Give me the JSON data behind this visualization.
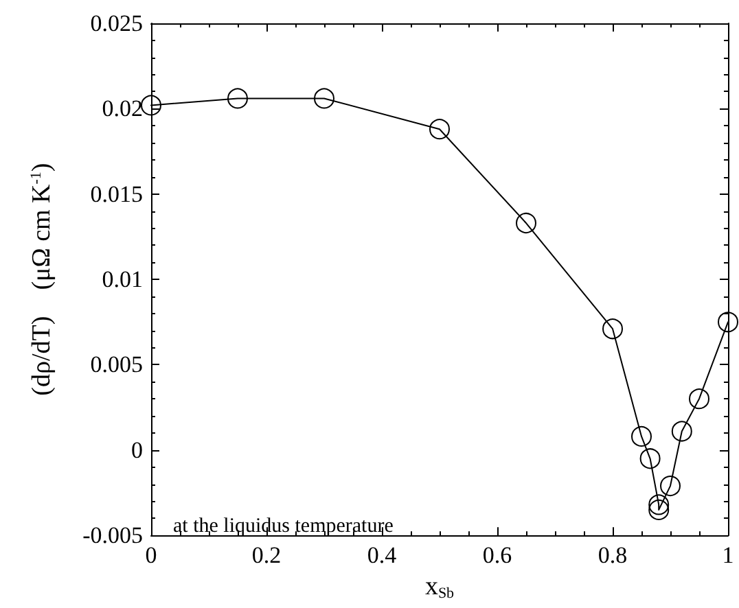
{
  "chart_data": {
    "type": "line",
    "xlabel": "x$_{Sb}$",
    "ylabel": "(dρ/dT)    (μΩ cm K$^{-1}$)",
    "annotations": [
      "at the liquidus temperature"
    ],
    "series": [
      {
        "color": "#000000",
        "x": [
          0,
          0.15,
          0.3,
          0.5,
          0.65,
          0.8,
          0.85,
          0.865,
          0.88,
          0.88,
          0.9,
          0.92,
          0.95,
          1.0
        ],
        "values": [
          0.0202,
          0.0206,
          0.0206,
          0.0188,
          0.0133,
          0.0071,
          0.0008,
          -0.0005,
          -0.0032,
          -0.0035,
          -0.0021,
          0.0011,
          0.003,
          0.0075
        ]
      }
    ],
    "xlim": [
      0,
      1
    ],
    "xticks": [
      0,
      0.2,
      0.4,
      0.6,
      0.8,
      1
    ],
    "ylim": [
      -0.005,
      0.025
    ],
    "yticks": [
      -0.005,
      0,
      0.005,
      0.01,
      0.015,
      0.02,
      0.025
    ],
    "marker": "circle",
    "line_style": "solid"
  }
}
